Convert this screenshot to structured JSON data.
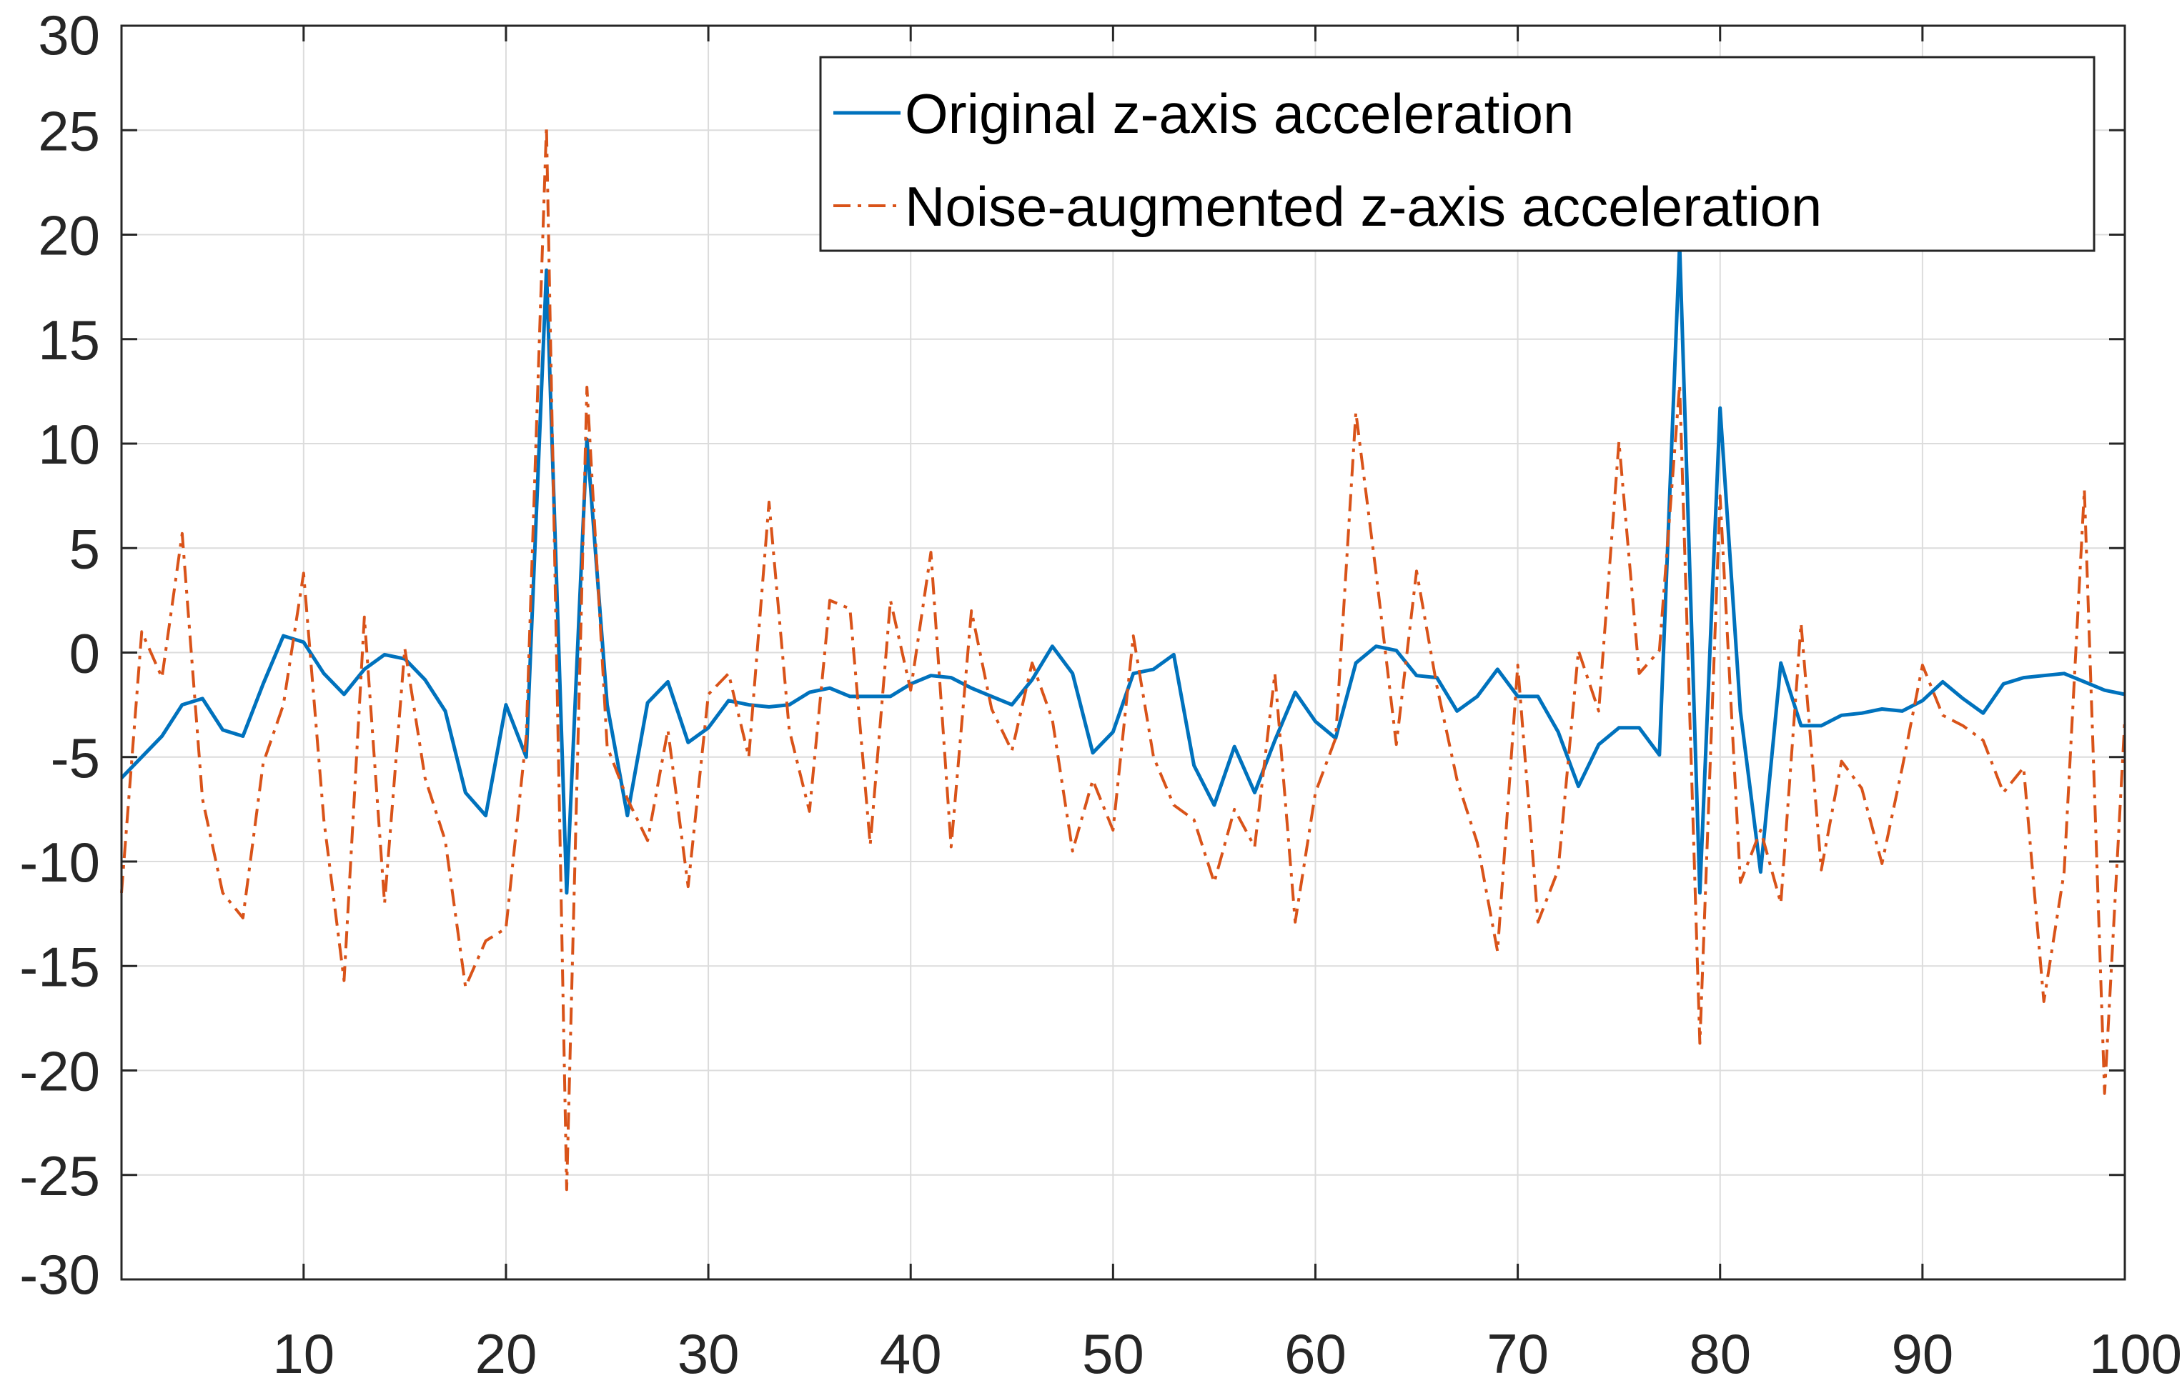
{
  "chart_data": {
    "type": "line",
    "title": "",
    "xlabel": "",
    "ylabel": "",
    "xlim": [
      1,
      100
    ],
    "ylim": [
      -30,
      30
    ],
    "xticks": [
      10,
      20,
      30,
      40,
      50,
      60,
      70,
      80,
      90,
      100
    ],
    "yticks": [
      30,
      25,
      20,
      15,
      10,
      5,
      0,
      -5,
      -10,
      -15,
      -20,
      -25,
      -30
    ],
    "grid": true,
    "legend_position": "top-right",
    "x": [
      1,
      2,
      3,
      4,
      5,
      6,
      7,
      8,
      9,
      10,
      11,
      12,
      13,
      14,
      15,
      16,
      17,
      18,
      19,
      20,
      21,
      22,
      23,
      24,
      25,
      26,
      27,
      28,
      29,
      30,
      31,
      32,
      33,
      34,
      35,
      36,
      37,
      38,
      39,
      40,
      41,
      42,
      43,
      44,
      45,
      46,
      47,
      48,
      49,
      50,
      51,
      52,
      53,
      54,
      55,
      56,
      57,
      58,
      59,
      60,
      61,
      62,
      63,
      64,
      65,
      66,
      67,
      68,
      69,
      70,
      71,
      72,
      73,
      74,
      75,
      76,
      77,
      78,
      79,
      80,
      81,
      82,
      83,
      84,
      85,
      86,
      87,
      88,
      89,
      90,
      91,
      92,
      93,
      94,
      95,
      96,
      97,
      98,
      99,
      100
    ],
    "series": [
      {
        "name": "Original z-axis acceleration",
        "color": "#0072BD",
        "style": "solid",
        "values": [
          -6,
          -5,
          -4,
          -2.5,
          -2.2,
          -3.7,
          -4,
          -1.5,
          0.8,
          0.5,
          -1,
          -2,
          -0.8,
          -0.1,
          -0.3,
          -1.3,
          -2.8,
          -6.7,
          -7.8,
          -2.5,
          -5,
          18.3,
          -11.5,
          10.2,
          -2.5,
          -7.8,
          -2.4,
          -1.4,
          -4.3,
          -3.6,
          -2.3,
          -2.5,
          -2.6,
          -2.5,
          -1.9,
          -1.7,
          -2.1,
          -2.1,
          -2.1,
          -1.5,
          -1.1,
          -1.2,
          -1.7,
          -2.1,
          -2.5,
          -1.3,
          0.3,
          -1,
          -4.8,
          -3.8,
          -1,
          -0.8,
          -0.1,
          -5.4,
          -7.3,
          -4.5,
          -6.7,
          -4.2,
          -1.9,
          -3.3,
          -4.1,
          -0.5,
          0.3,
          0.1,
          -1.1,
          -1.2,
          -2.8,
          -2.1,
          -0.8,
          -2.1,
          -2.1,
          -3.8,
          -6.4,
          -4.4,
          -3.6,
          -3.6,
          -4.9,
          19.5,
          -11.5,
          11.7,
          -2.8,
          -10.5,
          -0.5,
          -3.5,
          -3.5,
          -3,
          -2.9,
          -2.7,
          -2.8,
          -2.3,
          -1.4,
          -2.2,
          -2.9,
          -1.5,
          -1.2,
          -1.1,
          -1,
          -1.4,
          -1.8,
          -2
        ]
      },
      {
        "name": "Noise-augmented z-axis acceleration",
        "color": "#D95319",
        "style": "dashdot",
        "values": [
          -11.5,
          1,
          -1.2,
          5.7,
          -7,
          -11.5,
          -12.7,
          -5.3,
          -2.5,
          3.8,
          -8,
          -15.7,
          1.7,
          -12,
          0.2,
          -6,
          -9,
          -16,
          -13.8,
          -13.2,
          -4,
          25.2,
          -25.7,
          12.7,
          -4.5,
          -7,
          -9,
          -3.7,
          -11.2,
          -2,
          -1,
          -5,
          7.2,
          -3.7,
          -7.6,
          2.5,
          2.1,
          -9.2,
          2.5,
          -1.8,
          4.8,
          -9.3,
          2,
          -2.7,
          -4.7,
          -0.5,
          -3.2,
          -9.5,
          -6.1,
          -8.5,
          0.8,
          -5,
          -7.3,
          -8,
          -11,
          -7.5,
          -9.3,
          -1,
          -12.9,
          -6.7,
          -4.1,
          11.5,
          3.8,
          -4.4,
          3.9,
          -1.6,
          -6.1,
          -9.1,
          -14.3,
          -0.6,
          -12.9,
          -10.4,
          0.1,
          -2.8,
          10.1,
          -1,
          0.1,
          12.8,
          -18.7,
          7.5,
          -11,
          -8.5,
          -12,
          1.4,
          -10.4,
          -5.2,
          -6.5,
          -10.1,
          -5.5,
          -0.6,
          -3,
          -3.5,
          -4.2,
          -6.7,
          -5.5,
          -16.7,
          -10.5,
          7.8,
          -21.1,
          -3.2
        ]
      }
    ]
  }
}
